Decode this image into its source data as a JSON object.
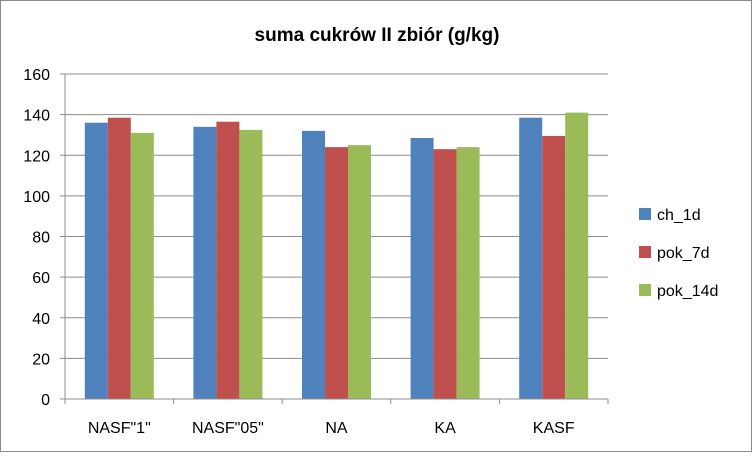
{
  "chart_data": {
    "type": "bar",
    "title": "suma cukrów II zbiór (g/kg)",
    "xlabel": "",
    "ylabel": "",
    "categories": [
      "NASF\"1\"",
      "NASF\"05\"",
      "NA",
      "KA",
      "KASF"
    ],
    "series": [
      {
        "name": "ch_1d",
        "color": "#4f81bd",
        "values": [
          136,
          134,
          132,
          128.5,
          138.5
        ]
      },
      {
        "name": "pok_7d",
        "color": "#c0504d",
        "values": [
          138.5,
          136.5,
          124,
          123,
          129.5
        ]
      },
      {
        "name": "pok_14d",
        "color": "#9bbb59",
        "values": [
          131,
          132.5,
          125,
          124,
          141
        ]
      }
    ],
    "ylim": [
      0,
      160
    ],
    "yticks": [
      0,
      20,
      40,
      60,
      80,
      100,
      120,
      140,
      160
    ],
    "grid": true,
    "legend_position": "right"
  }
}
